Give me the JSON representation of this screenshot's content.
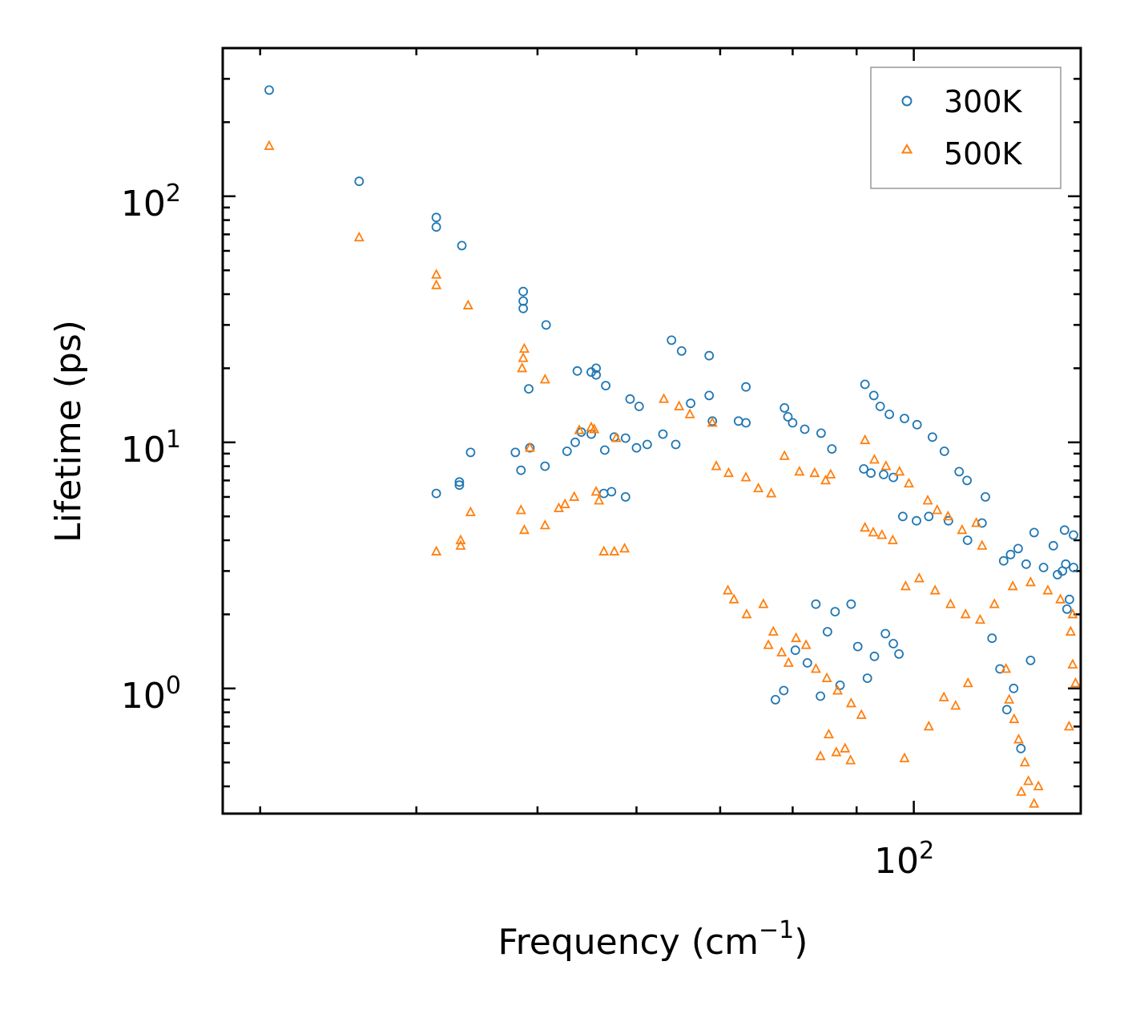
{
  "chart_data": {
    "type": "scatter",
    "scale": {
      "x": "log",
      "y": "log"
    },
    "xlabel": "Frequency (cm",
    "xlabel_sup": "−1",
    "xlabel_end": ")",
    "ylabel": "Lifetime (ps)",
    "xlim": [
      28,
      136
    ],
    "ylim": [
      0.31,
      400
    ],
    "x_ticks": [
      {
        "value": 100,
        "base": "10",
        "exp": "2"
      }
    ],
    "y_ticks": [
      {
        "value": 1,
        "base": "10",
        "exp": "0"
      },
      {
        "value": 10,
        "base": "10",
        "exp": "1"
      },
      {
        "value": 100,
        "base": "10",
        "exp": "2"
      }
    ],
    "legend_position": "top-right",
    "series": [
      {
        "name": "300K",
        "marker": "circle",
        "color": "#1f77b4",
        "points": [
          [
            30.5,
            270
          ],
          [
            36,
            115
          ],
          [
            41.5,
            82
          ],
          [
            41.5,
            75
          ],
          [
            43.5,
            63
          ],
          [
            41.5,
            6.2
          ],
          [
            43.3,
            6.9
          ],
          [
            43.3,
            6.7
          ],
          [
            44.2,
            9.1
          ],
          [
            48.7,
            41
          ],
          [
            48.7,
            37.5
          ],
          [
            48.7,
            35
          ],
          [
            49.2,
            16.5
          ],
          [
            50.8,
            30
          ],
          [
            48.5,
            7.7
          ],
          [
            48,
            9.1
          ],
          [
            49.3,
            9.5
          ],
          [
            50.7,
            8.0
          ],
          [
            53.8,
            19.5
          ],
          [
            55.2,
            19.3
          ],
          [
            55.7,
            18.8
          ],
          [
            55.7,
            20
          ],
          [
            56.7,
            17
          ],
          [
            59.3,
            15
          ],
          [
            60.3,
            14
          ],
          [
            64,
            26
          ],
          [
            65.2,
            23.5
          ],
          [
            66.3,
            14.4
          ],
          [
            68.6,
            15.5
          ],
          [
            68.6,
            22.5
          ],
          [
            69,
            12.2
          ],
          [
            73.4,
            16.8
          ],
          [
            72.4,
            12.2
          ],
          [
            73.4,
            12
          ],
          [
            52.8,
            9.2
          ],
          [
            53.6,
            10
          ],
          [
            54.2,
            11
          ],
          [
            55.2,
            10.8
          ],
          [
            56.6,
            9.3
          ],
          [
            57.6,
            10.5
          ],
          [
            58.8,
            10.4
          ],
          [
            60,
            9.5
          ],
          [
            61.2,
            9.8
          ],
          [
            63,
            10.8
          ],
          [
            64.5,
            9.8
          ],
          [
            56.5,
            6.2
          ],
          [
            57.3,
            6.3
          ],
          [
            58.8,
            6.0
          ],
          [
            78.8,
            13.8
          ],
          [
            79.3,
            12.7
          ],
          [
            80,
            12
          ],
          [
            81.8,
            11.3
          ],
          [
            84.3,
            10.9
          ],
          [
            86,
            9.4
          ],
          [
            91.4,
            17.2
          ],
          [
            92.9,
            15.5
          ],
          [
            94,
            14
          ],
          [
            95.6,
            13
          ],
          [
            98.3,
            12.5
          ],
          [
            100.6,
            11.8
          ],
          [
            103.5,
            10.5
          ],
          [
            105.8,
            9.2
          ],
          [
            108.7,
            7.6
          ],
          [
            110.3,
            7.0
          ],
          [
            114.1,
            6.0
          ],
          [
            91.2,
            7.8
          ],
          [
            92.4,
            7.5
          ],
          [
            94.6,
            7.4
          ],
          [
            96.3,
            7.2
          ],
          [
            98,
            5.0
          ],
          [
            100.5,
            4.8
          ],
          [
            102.8,
            5.0
          ],
          [
            106.6,
            4.8
          ],
          [
            110.4,
            4.0
          ],
          [
            113.4,
            4.7
          ],
          [
            118,
            3.3
          ],
          [
            121.2,
            3.7
          ],
          [
            124.8,
            4.3
          ],
          [
            129.3,
            3.8
          ],
          [
            132,
            4.4
          ],
          [
            134.2,
            4.2
          ],
          [
            119.5,
            3.5
          ],
          [
            123,
            3.2
          ],
          [
            127,
            3.1
          ],
          [
            131.5,
            3.0
          ],
          [
            115.5,
            1.6
          ],
          [
            117.2,
            1.2
          ],
          [
            118.7,
            0.82
          ],
          [
            120.2,
            1.0
          ],
          [
            121.8,
            0.57
          ],
          [
            124,
            1.3
          ],
          [
            83.5,
            2.2
          ],
          [
            85.3,
            1.7
          ],
          [
            86.5,
            2.05
          ],
          [
            89.1,
            2.2
          ],
          [
            90.2,
            1.48
          ],
          [
            91.8,
            1.1
          ],
          [
            93,
            1.35
          ],
          [
            94.9,
            1.67
          ],
          [
            96.3,
            1.52
          ],
          [
            97.3,
            1.38
          ],
          [
            77.5,
            0.9
          ],
          [
            78.7,
            0.98
          ],
          [
            80.4,
            1.43
          ],
          [
            82.2,
            1.27
          ],
          [
            84.2,
            0.93
          ],
          [
            87.3,
            1.03
          ],
          [
            130.3,
            2.9
          ],
          [
            132.3,
            3.2
          ],
          [
            134.2,
            3.1
          ],
          [
            133.2,
            2.3
          ],
          [
            132.6,
            2.1
          ]
        ]
      },
      {
        "name": "500K",
        "marker": "triangle",
        "color": "#ff7f0e",
        "points": [
          [
            30.5,
            160
          ],
          [
            36,
            68
          ],
          [
            41.5,
            48
          ],
          [
            41.5,
            43.5
          ],
          [
            44,
            36
          ],
          [
            41.5,
            3.6
          ],
          [
            43.4,
            4.0
          ],
          [
            43.4,
            3.8
          ],
          [
            44.2,
            5.2
          ],
          [
            48.5,
            5.3
          ],
          [
            48.8,
            4.4
          ],
          [
            48.8,
            24
          ],
          [
            48.7,
            22
          ],
          [
            49.3,
            9.5
          ],
          [
            50.7,
            18
          ],
          [
            48.6,
            20
          ],
          [
            50.7,
            4.6
          ],
          [
            52,
            5.4
          ],
          [
            52.6,
            5.6
          ],
          [
            53.5,
            6.0
          ],
          [
            54,
            11.2
          ],
          [
            55.2,
            11.5
          ],
          [
            55.5,
            11.3
          ],
          [
            55.7,
            6.3
          ],
          [
            56,
            5.8
          ],
          [
            56.5,
            3.6
          ],
          [
            57.6,
            3.6
          ],
          [
            58.7,
            3.7
          ],
          [
            57.8,
            10.4
          ],
          [
            63.1,
            15
          ],
          [
            64.9,
            14
          ],
          [
            66.2,
            13
          ],
          [
            69,
            12
          ],
          [
            69.5,
            8.0
          ],
          [
            71.1,
            7.5
          ],
          [
            73.4,
            7.2
          ],
          [
            75.1,
            6.5
          ],
          [
            76.9,
            6.2
          ],
          [
            78.8,
            8.8
          ],
          [
            81,
            7.6
          ],
          [
            83.3,
            7.5
          ],
          [
            85,
            7.0
          ],
          [
            85.8,
            7.4
          ],
          [
            71,
            2.5
          ],
          [
            71.8,
            2.3
          ],
          [
            73.5,
            2.0
          ],
          [
            75.8,
            2.2
          ],
          [
            77.2,
            1.7
          ],
          [
            76.5,
            1.5
          ],
          [
            78.4,
            1.4
          ],
          [
            80.5,
            1.6
          ],
          [
            82,
            1.5
          ],
          [
            79.4,
            1.27
          ],
          [
            83.5,
            1.2
          ],
          [
            85.2,
            1.1
          ],
          [
            86.9,
            0.98
          ],
          [
            89.1,
            0.87
          ],
          [
            90.8,
            0.78
          ],
          [
            84.2,
            0.53
          ],
          [
            86.7,
            0.55
          ],
          [
            88.1,
            0.57
          ],
          [
            89,
            0.51
          ],
          [
            85.5,
            0.65
          ],
          [
            91.4,
            10.2
          ],
          [
            93,
            8.5
          ],
          [
            95,
            8.0
          ],
          [
            97.4,
            7.6
          ],
          [
            99.1,
            6.8
          ],
          [
            102.6,
            5.8
          ],
          [
            104.4,
            5.3
          ],
          [
            106.5,
            5.0
          ],
          [
            109.3,
            4.4
          ],
          [
            112.2,
            4.7
          ],
          [
            113.4,
            3.8
          ],
          [
            91.4,
            4.5
          ],
          [
            92.8,
            4.3
          ],
          [
            94.3,
            4.2
          ],
          [
            96.2,
            4.0
          ],
          [
            98.5,
            2.6
          ],
          [
            101,
            2.8
          ],
          [
            104,
            2.5
          ],
          [
            107,
            2.2
          ],
          [
            110,
            2.0
          ],
          [
            113,
            1.9
          ],
          [
            116,
            2.2
          ],
          [
            120,
            2.6
          ],
          [
            124,
            2.7
          ],
          [
            128,
            2.5
          ],
          [
            131,
            2.3
          ],
          [
            134,
            2.0
          ],
          [
            118.5,
            1.2
          ],
          [
            119.2,
            0.9
          ],
          [
            120.3,
            0.75
          ],
          [
            121.3,
            0.62
          ],
          [
            121.9,
            0.38
          ],
          [
            122.7,
            0.5
          ],
          [
            123.5,
            0.42
          ],
          [
            124.8,
            0.34
          ],
          [
            125.8,
            0.4
          ],
          [
            98.3,
            0.52
          ],
          [
            102.8,
            0.7
          ],
          [
            105.7,
            0.92
          ],
          [
            108,
            0.85
          ],
          [
            110.5,
            1.05
          ],
          [
            133.1,
            0.7
          ],
          [
            134,
            1.25
          ],
          [
            134.7,
            1.05
          ],
          [
            133.5,
            1.7
          ]
        ]
      }
    ]
  }
}
